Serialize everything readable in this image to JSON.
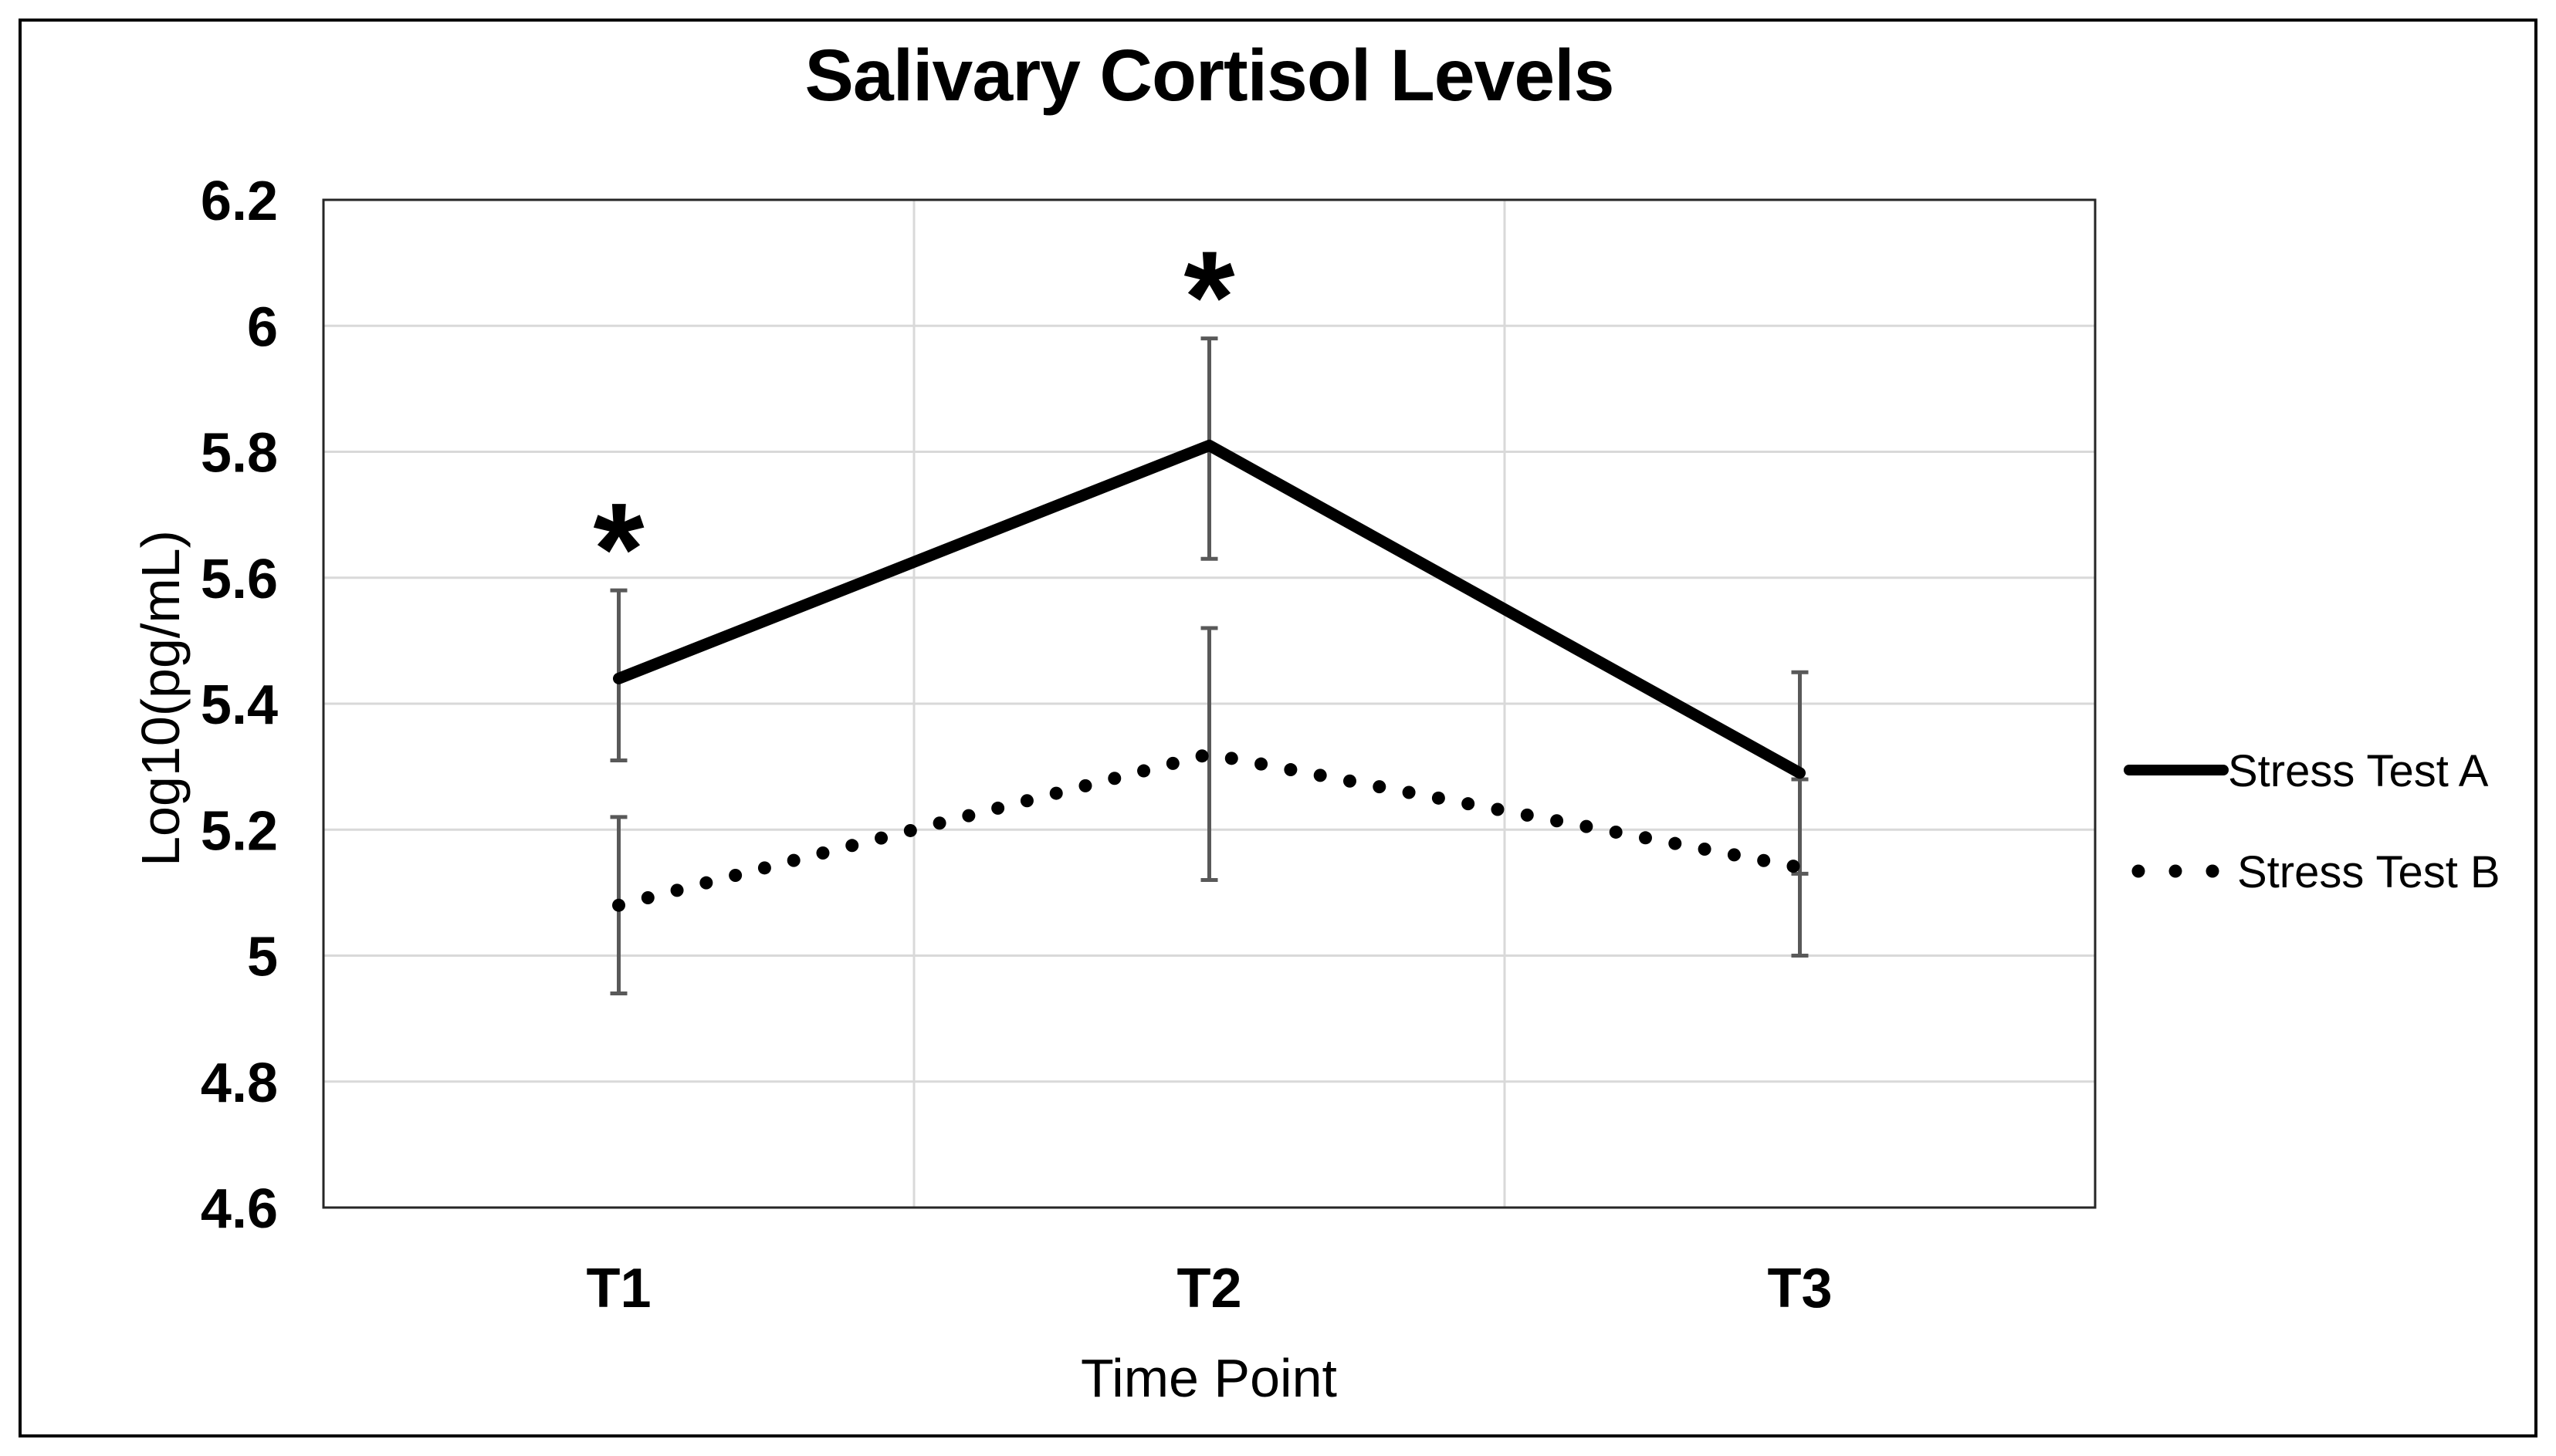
{
  "figure": {
    "background": "#ffffff",
    "border_color": "#000000"
  },
  "chart_data": {
    "type": "line",
    "title": "Salivary Cortisol Levels",
    "xlabel": "Time Point",
    "ylabel": "Log10(pg/mL)",
    "categories": [
      "T1",
      "T2",
      "T3"
    ],
    "ylim": [
      4.6,
      6.2
    ],
    "y_ticks": [
      {
        "value": 6.2,
        "label": "6.2"
      },
      {
        "value": 6.0,
        "label": "6"
      },
      {
        "value": 5.8,
        "label": "5.8"
      },
      {
        "value": 5.6,
        "label": "5.6"
      },
      {
        "value": 5.4,
        "label": "5.4"
      },
      {
        "value": 5.2,
        "label": "5.2"
      },
      {
        "value": 5.0,
        "label": "5"
      },
      {
        "value": 4.8,
        "label": "4.8"
      },
      {
        "value": 4.6,
        "label": "4.6"
      }
    ],
    "grid": true,
    "gridline_color": "#D9D9D9",
    "error_bar_color": "#595959",
    "legend_position": "right-outside",
    "series": [
      {
        "name": "Stress Test A",
        "line_style": "solid",
        "color": "#000000",
        "values": [
          5.44,
          5.81,
          5.29
        ],
        "error_low": [
          5.31,
          5.63,
          5.13
        ],
        "error_high": [
          5.58,
          5.98,
          5.45
        ]
      },
      {
        "name": "Stress Test B",
        "line_style": "dotted",
        "color": "#000000",
        "values": [
          5.08,
          5.32,
          5.14
        ],
        "error_low": [
          4.94,
          5.12,
          5.0
        ],
        "error_high": [
          5.22,
          5.52,
          5.28
        ]
      }
    ],
    "annotations": [
      {
        "text": "*",
        "category": "T1",
        "series": "Stress Test A"
      },
      {
        "text": "*",
        "category": "T2",
        "series": "Stress Test A"
      }
    ]
  }
}
